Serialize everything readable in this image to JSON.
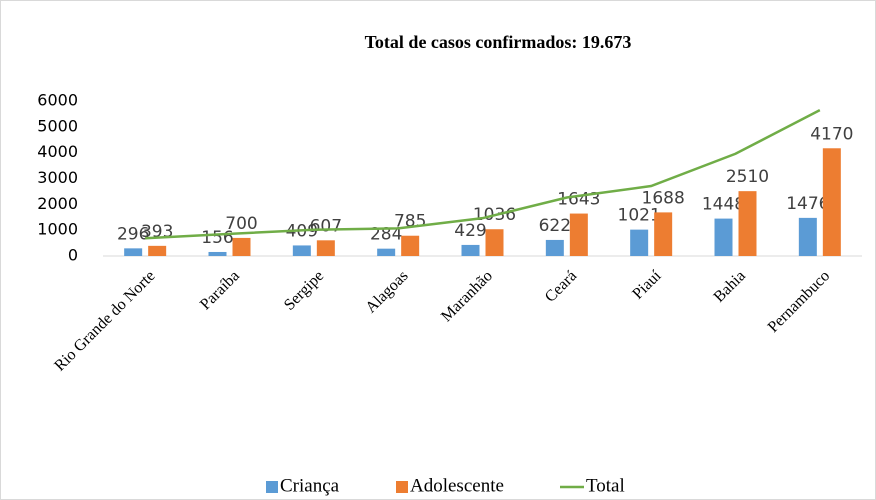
{
  "chart_data": {
    "type": "bar",
    "title": "Total de casos confirmados: 19.673",
    "categories": [
      "Rio Grande do Norte",
      "Paraíba",
      "Sergipe",
      "Alagoas",
      "Maranhão",
      "Ceará",
      "Piauí",
      "Bahia",
      "Pernambuco"
    ],
    "series": [
      {
        "name": "Criança",
        "color": "#5b9bd5",
        "type": "bar",
        "values": [
          296,
          156,
          409,
          284,
          429,
          622,
          1021,
          1448,
          1476
        ]
      },
      {
        "name": "Adolescente",
        "color": "#ed7d31",
        "type": "bar",
        "values": [
          393,
          700,
          607,
          785,
          1036,
          1643,
          1688,
          2510,
          4170
        ]
      },
      {
        "name": "Total",
        "color": "#70ad47",
        "type": "line",
        "values": [
          689,
          856,
          1016,
          1069,
          1465,
          2265,
          2709,
          3958,
          5646
        ]
      }
    ],
    "ylim": [
      0,
      6000
    ],
    "yticks": [
      0,
      1000,
      2000,
      3000,
      4000,
      5000,
      6000
    ],
    "grid": false,
    "legend": "bottom"
  }
}
